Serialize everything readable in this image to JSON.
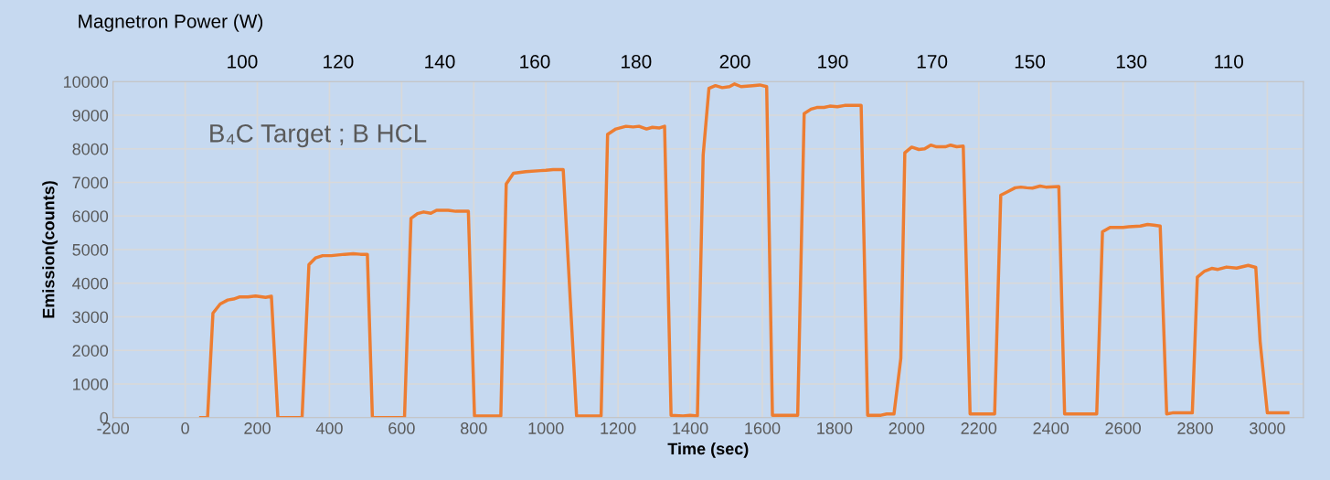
{
  "chart_data": {
    "type": "line",
    "xlabel": "Time (sec)",
    "ylabel": "Emission(counts)",
    "annotations": [
      "Magnetron Power (W)",
      "B₄C Target ; B HCL",
      "100",
      "120",
      "140",
      "160",
      "180",
      "200",
      "190",
      "170",
      "150",
      "130",
      "110"
    ],
    "xlim": [
      -200,
      3100
    ],
    "xticks": [
      -200,
      0,
      200,
      400,
      600,
      800,
      1000,
      1200,
      1400,
      1600,
      1800,
      2000,
      2200,
      2400,
      2600,
      2800,
      3000
    ],
    "ylim": [
      0,
      10000
    ],
    "yticks": [
      0,
      1000,
      2000,
      3000,
      4000,
      5000,
      6000,
      7000,
      8000,
      9000,
      10000
    ],
    "grid": true,
    "legend": false,
    "marker": "none",
    "line_style": "solid",
    "series": [
      {
        "color": "#ed7d31",
        "x": [
          43,
          62,
          77,
          97,
          118,
          134,
          150,
          174,
          195,
          223,
          239,
          257,
          324,
          343,
          361,
          381,
          405,
          442,
          466,
          486,
          505,
          519,
          608,
          626,
          644,
          661,
          681,
          697,
          729,
          750,
          785,
          802,
          875,
          890,
          910,
          944,
          985,
          1000,
          1020,
          1048,
          1085,
          1153,
          1171,
          1194,
          1222,
          1242,
          1258,
          1279,
          1295,
          1315,
          1329,
          1347,
          1380,
          1400,
          1420,
          1436,
          1452,
          1470,
          1489,
          1509,
          1523,
          1541,
          1573,
          1593,
          1612,
          1628,
          1698,
          1716,
          1735,
          1751,
          1771,
          1787,
          1808,
          1828,
          1874,
          1892,
          1929,
          1945,
          1965,
          1984,
          1995,
          2014,
          2034,
          2050,
          2067,
          2083,
          2107,
          2122,
          2139,
          2157,
          2176,
          2244,
          2261,
          2281,
          2301,
          2317,
          2333,
          2349,
          2370,
          2386,
          2422,
          2438,
          2527,
          2543,
          2564,
          2600,
          2616,
          2648,
          2668,
          2685,
          2703,
          2721,
          2737,
          2792,
          2806,
          2826,
          2846,
          2863,
          2887,
          2915,
          2947,
          2968,
          2980,
          3000,
          3057
        ],
        "values": [
          0,
          0,
          3110,
          3380,
          3500,
          3530,
          3590,
          3590,
          3620,
          3580,
          3610,
          0,
          0,
          4550,
          4750,
          4820,
          4820,
          4860,
          4880,
          4860,
          4860,
          0,
          0,
          5930,
          6070,
          6120,
          6080,
          6170,
          6170,
          6140,
          6140,
          50,
          50,
          6950,
          7270,
          7320,
          7350,
          7360,
          7380,
          7380,
          50,
          50,
          8430,
          8590,
          8670,
          8650,
          8670,
          8590,
          8640,
          8620,
          8670,
          70,
          50,
          70,
          50,
          7820,
          9800,
          9880,
          9820,
          9850,
          9930,
          9850,
          9880,
          9900,
          9850,
          70,
          70,
          9050,
          9180,
          9230,
          9230,
          9270,
          9250,
          9290,
          9290,
          70,
          70,
          110,
          110,
          1770,
          7880,
          8050,
          7980,
          8000,
          8110,
          8060,
          8060,
          8110,
          8060,
          8080,
          110,
          110,
          6620,
          6730,
          6840,
          6860,
          6840,
          6830,
          6890,
          6860,
          6880,
          110,
          110,
          5530,
          5660,
          5660,
          5680,
          5700,
          5750,
          5730,
          5700,
          110,
          140,
          140,
          4180,
          4360,
          4440,
          4410,
          4480,
          4450,
          4530,
          4470,
          2270,
          140,
          140
        ]
      }
    ]
  }
}
